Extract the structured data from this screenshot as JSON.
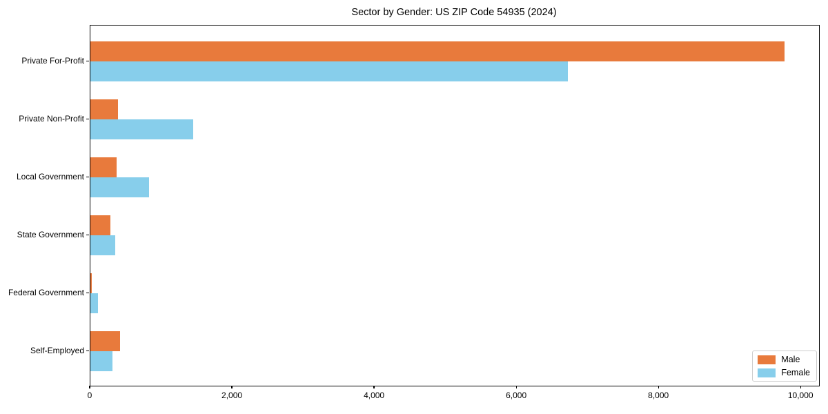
{
  "title": "Sector by Gender: US ZIP Code 54935 (2024)",
  "chart_data": {
    "type": "bar",
    "orientation": "horizontal",
    "title": "Sector by Gender: US ZIP Code 54935 (2024)",
    "categories": [
      "Private For-Profit",
      "Private Non-Profit",
      "Local Government",
      "State Government",
      "Federal Government",
      "Self-Employed"
    ],
    "series": [
      {
        "name": "Male",
        "color": "#e87a3c",
        "values": [
          9760,
          390,
          365,
          280,
          15,
          415
        ]
      },
      {
        "name": "Female",
        "color": "#87ceeb",
        "values": [
          6720,
          1450,
          825,
          350,
          105,
          315
        ]
      }
    ],
    "xlabel": "",
    "ylabel": "",
    "xlim": [
      0,
      10250
    ],
    "xticks": [
      0,
      2000,
      4000,
      6000,
      8000,
      10000
    ],
    "xtick_labels": [
      "0",
      "2,000",
      "4,000",
      "6,000",
      "8,000",
      "10,000"
    ],
    "legend_position": "lower right",
    "grid": false,
    "background": "#ffffff",
    "frame_color": "#000000"
  }
}
